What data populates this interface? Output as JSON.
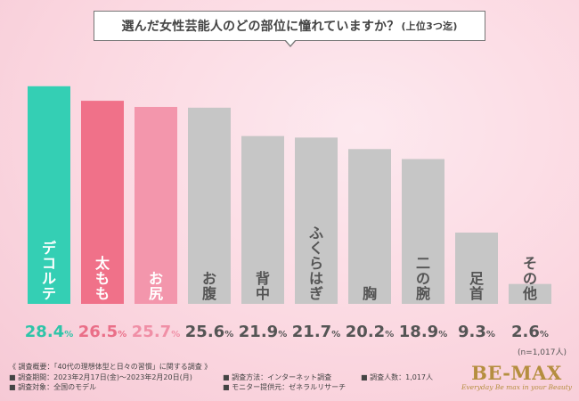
{
  "title": {
    "main": "選んだ女性芸能人のどの部位に憧れていますか？",
    "sub": "(上位3つ迄)"
  },
  "chart_data": {
    "type": "bar",
    "title": "選んだ女性芸能人のどの部位に憧れていますか？(上位3つ迄)",
    "categories": [
      "デコルテ",
      "太もも",
      "お尻",
      "お腹",
      "背中",
      "ふくらはぎ",
      "胸",
      "二の腕",
      "足首",
      "その他"
    ],
    "values": [
      28.4,
      26.5,
      25.7,
      25.6,
      21.9,
      21.7,
      20.2,
      18.9,
      9.3,
      2.6
    ],
    "units": "%",
    "ylim": [
      0,
      30
    ],
    "xlabel": "",
    "ylabel": "",
    "colors": [
      "#34cfb4",
      "#f07189",
      "#f396ac",
      "#c6c6c6",
      "#c6c6c6",
      "#c6c6c6",
      "#c6c6c6",
      "#c6c6c6",
      "#c6c6c6",
      "#c6c6c6"
    ],
    "label_colors": [
      "#2fc4a8",
      "#ea6f88",
      "#f08fa6",
      "#555555",
      "#555555",
      "#555555",
      "#555555",
      "#555555",
      "#555555",
      "#555555"
    ]
  },
  "sample_note": "(n=1,017人)",
  "footer": {
    "left": [
      "《 調査概要：「40代の理想体型と日々の習慣」に関する調査 》",
      "■ 調査期間：2023年2月17日(金)～2023年2月20日(月)",
      "■ 調査対象：全国のモデル"
    ],
    "middle": [
      "■ 調査方法：インターネット調査",
      "■ モニター提供元：ゼネラルリサーチ"
    ],
    "right": [
      "■ 調査人数：1,017人"
    ]
  },
  "logo": {
    "brand": "BE-MAX",
    "tagline": "Everyday Be max in your Beauty"
  }
}
